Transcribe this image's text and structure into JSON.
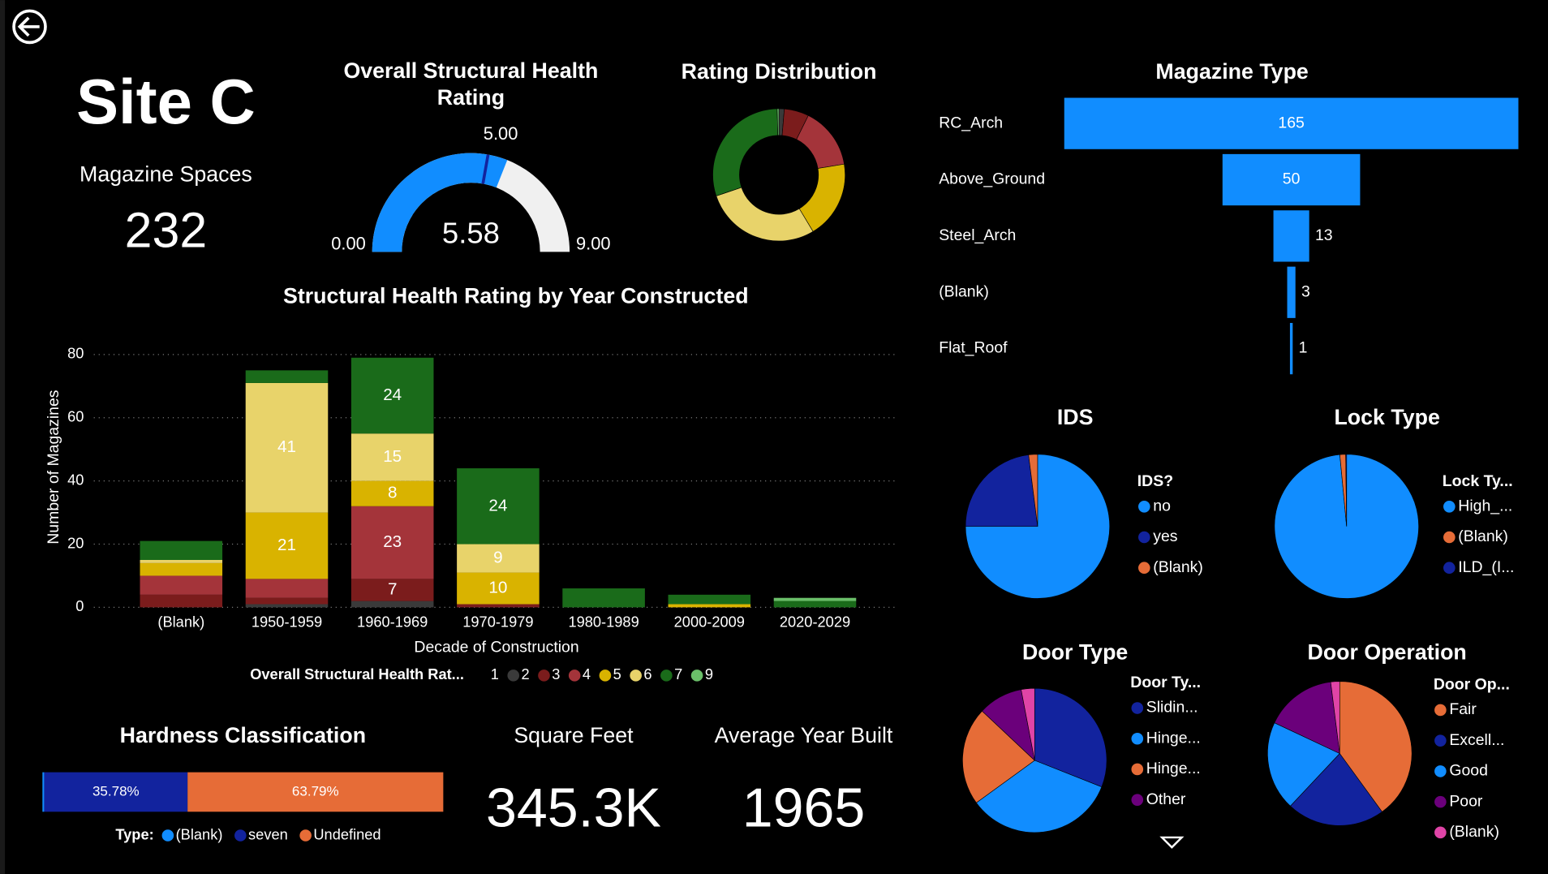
{
  "title": "Site C",
  "cards": [
    {
      "label": "Magazine Spaces",
      "value": 232
    },
    {
      "label": "Square Feet",
      "value": 345300,
      "value_label": "345.3K"
    },
    {
      "label": "Average Year Built",
      "value": 1965
    }
  ],
  "chart_data": [
    {
      "type": "gauge",
      "title": "Overall Structural Health Rating",
      "value": 5.58,
      "min": {
        "value": 0,
        "label": "0.00"
      },
      "max": {
        "value": 9,
        "label": "9.00"
      },
      "target": {
        "value": 5,
        "label": "5.00"
      },
      "color": "#118dff",
      "track_color": "#f0f0f0",
      "target_color": "#12239e"
    },
    {
      "type": "donut",
      "title": "Rating Distribution",
      "values": [
        3,
        14,
        35,
        44,
        66,
        69,
        1
      ],
      "colors": [
        "#3a3a3a",
        "#7b1c1c",
        "#a4343a",
        "#d9b300",
        "#e8d36a",
        "#1a6b1a",
        "#6abf69"
      ]
    },
    {
      "type": "stacked_bar",
      "title": "Structural Health Rating by Year Constructed",
      "x_label": "Decade of Construction",
      "y_label": "Number of Magazines",
      "legend_title": "Overall Structural Health Rat...",
      "categories": [
        "(Blank)",
        "1950-1959",
        "1960-1969",
        "1970-1979",
        "1980-1989",
        "2000-2009",
        "2020-2029"
      ],
      "ylim": [
        0,
        80
      ],
      "yticks": [
        0,
        20,
        40,
        60,
        80
      ],
      "grid": true,
      "series": [
        {
          "name": "1",
          "color": "#000000",
          "values": [
            null,
            null,
            null,
            null,
            null,
            null,
            null
          ]
        },
        {
          "name": "2",
          "color": "#3a3a3a",
          "values": [
            null,
            1,
            2,
            null,
            null,
            null,
            null
          ]
        },
        {
          "name": "3",
          "color": "#7b1c1c",
          "values": [
            4,
            2,
            7,
            1,
            null,
            null,
            null
          ]
        },
        {
          "name": "4",
          "color": "#a4343a",
          "values": [
            6,
            6,
            23,
            null,
            null,
            null,
            null
          ]
        },
        {
          "name": "5",
          "color": "#d9b300",
          "values": [
            4,
            21,
            8,
            10,
            null,
            1,
            null
          ]
        },
        {
          "name": "6",
          "color": "#e8d36a",
          "values": [
            1,
            41,
            15,
            9,
            null,
            null,
            null
          ]
        },
        {
          "name": "7",
          "color": "#1a6b1a",
          "values": [
            6,
            4,
            24,
            24,
            6,
            3,
            2
          ]
        },
        {
          "name": "9",
          "color": "#6abf69",
          "values": [
            null,
            null,
            null,
            null,
            null,
            null,
            1
          ]
        }
      ]
    },
    {
      "type": "funnel",
      "title": "Magazine Type",
      "color": "#118dff",
      "categories": [
        "RC_Arch",
        "Above_Ground",
        "Steel_Arch",
        "(Blank)",
        "Flat_Roof"
      ],
      "values": [
        165,
        50,
        13,
        3,
        1
      ]
    },
    {
      "type": "pie",
      "title": "IDS",
      "legend_title": "IDS?",
      "categories": [
        "no",
        "yes",
        "(Blank)"
      ],
      "values": [
        75,
        23,
        2
      ],
      "colors": [
        "#118dff",
        "#12239e",
        "#e66c37"
      ]
    },
    {
      "type": "pie",
      "title": "Lock Type",
      "legend_title": "Lock Ty...",
      "categories": [
        "High_...",
        "(Blank)",
        "ILD_(I..."
      ],
      "values": [
        98.5,
        1.3,
        0.2
      ],
      "colors": [
        "#118dff",
        "#e66c37",
        "#12239e"
      ]
    },
    {
      "type": "pie",
      "title": "Door Type",
      "legend_title": "Door Ty...",
      "categories": [
        "Slidin...",
        "Hinge...",
        "Hinge...",
        "Other",
        null
      ],
      "values": [
        31,
        34,
        22,
        10,
        3
      ],
      "colors": [
        "#12239e",
        "#118dff",
        "#e66c37",
        "#6b007b",
        "#e044a7"
      ]
    },
    {
      "type": "pie",
      "title": "Door Operation",
      "legend_title": "Door Op...",
      "categories": [
        "Fair",
        "Excell...",
        "Good",
        "Poor",
        "(Blank)"
      ],
      "values": [
        40,
        22,
        20,
        16,
        2
      ],
      "colors": [
        "#e66c37",
        "#12239e",
        "#118dff",
        "#6b007b",
        "#e044a7"
      ]
    },
    {
      "type": "bar100",
      "title": "Hardness Classification",
      "legend_title": "Type:",
      "series": [
        {
          "name": "(Blank)",
          "color": "#118dff",
          "values": [
            0.43
          ]
        },
        {
          "name": "seven",
          "color": "#12239e",
          "values": [
            35.78
          ],
          "value_labels": [
            "35.78%"
          ]
        },
        {
          "name": "Undefined",
          "color": "#e66c37",
          "values": [
            63.79
          ],
          "value_labels": [
            "63.79%"
          ]
        }
      ]
    }
  ]
}
